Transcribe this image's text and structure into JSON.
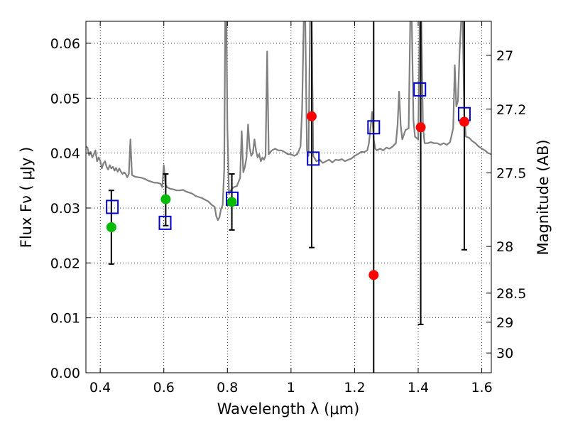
{
  "chart_data": {
    "type": "scatter",
    "xlabel": "Wavelength  λ (μm)",
    "ylabel": "Flux  Fν  ( μJy )",
    "ylabel_right": "Magnitude (AB)",
    "xlim": [
      0.355,
      1.63
    ],
    "ylim": [
      0.0,
      0.064
    ],
    "grid": true,
    "x_ticks": [
      0.4,
      0.6,
      0.8,
      1.0,
      1.2,
      1.4,
      1.6
    ],
    "x_tick_labels": [
      "0.4",
      "0.6",
      "0.8",
      "1",
      "1.2",
      "1.4",
      "1.6"
    ],
    "y_ticks": [
      0.0,
      0.01,
      0.02,
      0.03,
      0.04,
      0.05,
      0.06
    ],
    "y_tick_labels": [
      "0.00",
      "0.01",
      "0.02",
      "0.03",
      "0.04",
      "0.05",
      "0.06"
    ],
    "right_axis": {
      "label": "Magnitude (AB)",
      "ticks": [
        {
          "label": "27",
          "flux": 0.0578
        },
        {
          "label": "27.2",
          "flux": 0.048
        },
        {
          "label": "27.5",
          "flux": 0.0364
        },
        {
          "label": "28",
          "flux": 0.023
        },
        {
          "label": "28.5",
          "flux": 0.0145
        },
        {
          "label": "29",
          "flux": 0.0092
        },
        {
          "label": "30",
          "flux": 0.0036
        }
      ]
    },
    "colors": {
      "model": "#808080",
      "measured_green": "#00bb00",
      "measured_red": "#ff0000",
      "model_boxes": "#0000cc",
      "errorbar": "#000000"
    },
    "series": [
      {
        "kind": "spectrum-line",
        "points": [
          [
            0.355,
            0.0412
          ],
          [
            0.36,
            0.041
          ],
          [
            0.365,
            0.0396
          ],
          [
            0.37,
            0.0402
          ],
          [
            0.375,
            0.0392
          ],
          [
            0.38,
            0.0398
          ],
          [
            0.385,
            0.0405
          ],
          [
            0.39,
            0.0385
          ],
          [
            0.395,
            0.0392
          ],
          [
            0.4,
            0.0386
          ],
          [
            0.405,
            0.0372
          ],
          [
            0.41,
            0.0381
          ],
          [
            0.415,
            0.0385
          ],
          [
            0.42,
            0.0375
          ],
          [
            0.425,
            0.037
          ],
          [
            0.43,
            0.0378
          ],
          [
            0.435,
            0.0372
          ],
          [
            0.44,
            0.0375
          ],
          [
            0.445,
            0.0368
          ],
          [
            0.45,
            0.0373
          ],
          [
            0.455,
            0.0366
          ],
          [
            0.46,
            0.0372
          ],
          [
            0.465,
            0.0366
          ],
          [
            0.47,
            0.0362
          ],
          [
            0.475,
            0.0365
          ],
          [
            0.48,
            0.0362
          ],
          [
            0.485,
            0.0356
          ],
          [
            0.49,
            0.0362
          ],
          [
            0.495,
            0.0425
          ],
          [
            0.5,
            0.036
          ],
          [
            0.51,
            0.0357
          ],
          [
            0.52,
            0.0356
          ],
          [
            0.53,
            0.0355
          ],
          [
            0.54,
            0.0353
          ],
          [
            0.55,
            0.035
          ],
          [
            0.56,
            0.0348
          ],
          [
            0.57,
            0.0346
          ],
          [
            0.58,
            0.0346
          ],
          [
            0.59,
            0.0344
          ],
          [
            0.595,
            0.0338
          ],
          [
            0.6,
            0.0378
          ],
          [
            0.605,
            0.0343
          ],
          [
            0.61,
            0.0338
          ],
          [
            0.62,
            0.0335
          ],
          [
            0.63,
            0.0334
          ],
          [
            0.64,
            0.0332
          ],
          [
            0.65,
            0.0332
          ],
          [
            0.66,
            0.0333
          ],
          [
            0.67,
            0.033
          ],
          [
            0.68,
            0.0328
          ],
          [
            0.69,
            0.0326
          ],
          [
            0.7,
            0.0322
          ],
          [
            0.71,
            0.032
          ],
          [
            0.72,
            0.0318
          ],
          [
            0.73,
            0.0315
          ],
          [
            0.74,
            0.0312
          ],
          [
            0.75,
            0.0306
          ],
          [
            0.76,
            0.0302
          ],
          [
            0.765,
            0.0285
          ],
          [
            0.77,
            0.0278
          ],
          [
            0.775,
            0.0283
          ],
          [
            0.78,
            0.0298
          ],
          [
            0.785,
            0.0305
          ],
          [
            0.79,
            0.037
          ],
          [
            0.793,
            0.064
          ],
          [
            0.797,
            0.064
          ],
          [
            0.8,
            0.0445
          ],
          [
            0.805,
            0.0325
          ],
          [
            0.81,
            0.0332
          ],
          [
            0.82,
            0.0338
          ],
          [
            0.83,
            0.034
          ],
          [
            0.84,
            0.0355
          ],
          [
            0.845,
            0.044
          ],
          [
            0.85,
            0.0365
          ],
          [
            0.855,
            0.0375
          ],
          [
            0.86,
            0.0392
          ],
          [
            0.865,
            0.0452
          ],
          [
            0.87,
            0.041
          ],
          [
            0.875,
            0.0395
          ],
          [
            0.88,
            0.04
          ],
          [
            0.885,
            0.0425
          ],
          [
            0.89,
            0.0405
          ],
          [
            0.895,
            0.0392
          ],
          [
            0.9,
            0.0398
          ],
          [
            0.905,
            0.0385
          ],
          [
            0.91,
            0.0392
          ],
          [
            0.915,
            0.0388
          ],
          [
            0.92,
            0.0395
          ],
          [
            0.925,
            0.0585
          ],
          [
            0.93,
            0.0398
          ],
          [
            0.935,
            0.0402
          ],
          [
            0.94,
            0.0405
          ],
          [
            0.95,
            0.0408
          ],
          [
            0.96,
            0.0405
          ],
          [
            0.97,
            0.0405
          ],
          [
            0.98,
            0.0402
          ],
          [
            0.99,
            0.0398
          ],
          [
            1.0,
            0.0398
          ],
          [
            1.01,
            0.0395
          ],
          [
            1.02,
            0.0398
          ],
          [
            1.03,
            0.0412
          ],
          [
            1.035,
            0.048
          ],
          [
            1.04,
            0.064
          ],
          [
            1.045,
            0.064
          ],
          [
            1.05,
            0.0405
          ],
          [
            1.055,
            0.0395
          ],
          [
            1.06,
            0.064
          ],
          [
            1.065,
            0.064
          ],
          [
            1.07,
            0.0395
          ],
          [
            1.08,
            0.0385
          ],
          [
            1.09,
            0.0388
          ],
          [
            1.1,
            0.0382
          ],
          [
            1.11,
            0.0385
          ],
          [
            1.12,
            0.0388
          ],
          [
            1.13,
            0.0383
          ],
          [
            1.14,
            0.0388
          ],
          [
            1.15,
            0.0387
          ],
          [
            1.16,
            0.0389
          ],
          [
            1.17,
            0.0385
          ],
          [
            1.18,
            0.0388
          ],
          [
            1.19,
            0.039
          ],
          [
            1.2,
            0.0395
          ],
          [
            1.21,
            0.0398
          ],
          [
            1.22,
            0.0402
          ],
          [
            1.23,
            0.0402
          ],
          [
            1.24,
            0.0405
          ],
          [
            1.245,
            0.0418
          ],
          [
            1.25,
            0.0445
          ],
          [
            1.255,
            0.0475
          ],
          [
            1.26,
            0.0425
          ],
          [
            1.265,
            0.0408
          ],
          [
            1.27,
            0.0405
          ],
          [
            1.28,
            0.0408
          ],
          [
            1.29,
            0.0405
          ],
          [
            1.3,
            0.041
          ],
          [
            1.31,
            0.0408
          ],
          [
            1.32,
            0.0412
          ],
          [
            1.33,
            0.0418
          ],
          [
            1.335,
            0.045
          ],
          [
            1.34,
            0.0512
          ],
          [
            1.345,
            0.045
          ],
          [
            1.35,
            0.0425
          ],
          [
            1.36,
            0.0442
          ],
          [
            1.37,
            0.0445
          ],
          [
            1.375,
            0.064
          ],
          [
            1.38,
            0.064
          ],
          [
            1.385,
            0.046
          ],
          [
            1.39,
            0.043
          ],
          [
            1.4,
            0.0425
          ],
          [
            1.405,
            0.064
          ],
          [
            1.41,
            0.064
          ],
          [
            1.415,
            0.045
          ],
          [
            1.42,
            0.0418
          ],
          [
            1.43,
            0.0418
          ],
          [
            1.44,
            0.042
          ],
          [
            1.45,
            0.0418
          ],
          [
            1.46,
            0.0418
          ],
          [
            1.47,
            0.0415
          ],
          [
            1.48,
            0.0418
          ],
          [
            1.49,
            0.0415
          ],
          [
            1.5,
            0.042
          ],
          [
            1.51,
            0.0445
          ],
          [
            1.515,
            0.056
          ],
          [
            1.52,
            0.0485
          ],
          [
            1.525,
            0.0495
          ],
          [
            1.53,
            0.058
          ],
          [
            1.535,
            0.064
          ],
          [
            1.54,
            0.064
          ],
          [
            1.545,
            0.047
          ],
          [
            1.55,
            0.043
          ],
          [
            1.56,
            0.0428
          ],
          [
            1.57,
            0.0422
          ],
          [
            1.58,
            0.0418
          ],
          [
            1.59,
            0.0412
          ],
          [
            1.6,
            0.0408
          ],
          [
            1.61,
            0.0405
          ],
          [
            1.62,
            0.04
          ],
          [
            1.63,
            0.0398
          ]
        ]
      },
      {
        "kind": "model-boxes",
        "points": [
          [
            0.438,
            0.0302
          ],
          [
            0.604,
            0.0273
          ],
          [
            0.815,
            0.0317
          ],
          [
            1.07,
            0.039
          ],
          [
            1.26,
            0.0447
          ],
          [
            1.405,
            0.0516
          ],
          [
            1.545,
            0.0471
          ]
        ]
      },
      {
        "kind": "measured-green",
        "points": [
          [
            0.435,
            0.0265
          ],
          [
            0.606,
            0.0316
          ],
          [
            0.814,
            0.0311
          ]
        ]
      },
      {
        "kind": "measured-red",
        "points": [
          [
            1.065,
            0.0467
          ],
          [
            1.26,
            0.0178
          ],
          [
            1.408,
            0.0447
          ],
          [
            1.545,
            0.0457
          ]
        ]
      },
      {
        "kind": "errorbars",
        "bars": [
          {
            "x": 0.435,
            "low": 0.0198,
            "high": 0.0332,
            "caps": true
          },
          {
            "x": 0.606,
            "low": 0.0268,
            "high": 0.0362,
            "caps": true
          },
          {
            "x": 0.814,
            "low": 0.026,
            "high": 0.0362,
            "caps": true
          },
          {
            "x": 1.065,
            "low": 0.0228,
            "high": 0.064,
            "caps": true
          },
          {
            "x": 1.26,
            "low": 0.0,
            "high": 0.064,
            "caps": false
          },
          {
            "x": 1.408,
            "low": 0.0088,
            "high": 0.064,
            "caps": true
          },
          {
            "x": 1.545,
            "low": 0.0224,
            "high": 0.064,
            "caps": true
          }
        ]
      }
    ]
  }
}
